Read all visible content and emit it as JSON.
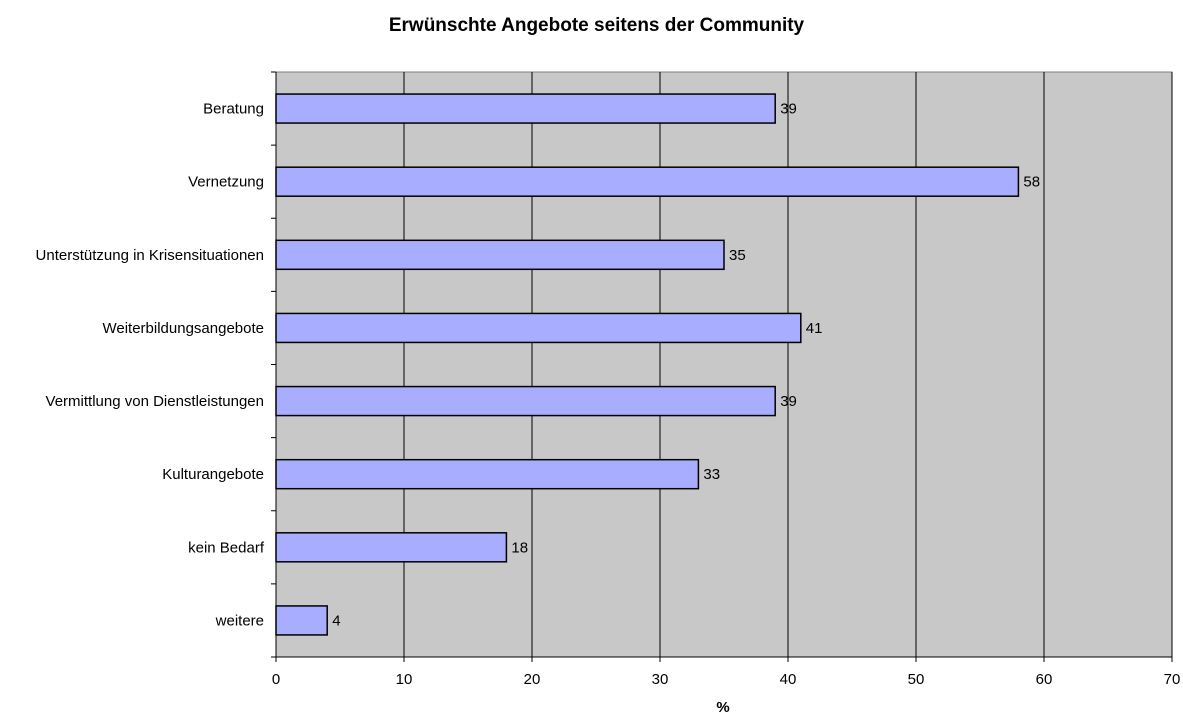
{
  "chart_data": {
    "type": "bar",
    "orientation": "horizontal",
    "title": "Erwünschte Angebote seitens der Community",
    "xlabel": "%",
    "ylabel": "",
    "categories": [
      "Beratung",
      "Vernetzung",
      "Unterstützung in Krisensituationen",
      "Weiterbildungsangebote",
      "Vermittlung von Dienstleistungen",
      "Kulturangebote",
      "kein Bedarf",
      "weitere"
    ],
    "values": [
      39,
      58,
      35,
      41,
      39,
      33,
      18,
      4
    ],
    "data_labels": [
      "39",
      "58",
      "35",
      "41",
      "39",
      "33",
      "18",
      "4"
    ],
    "xlim": [
      0,
      70
    ],
    "xticks": [
      0,
      10,
      20,
      30,
      40,
      50,
      60,
      70
    ],
    "grid": "vertical",
    "legend": "none",
    "colors": {
      "bar_fill": "#a9adff",
      "bar_stroke": "#000000",
      "plot_background": "#c8c8c8",
      "grid": "#000000"
    }
  }
}
